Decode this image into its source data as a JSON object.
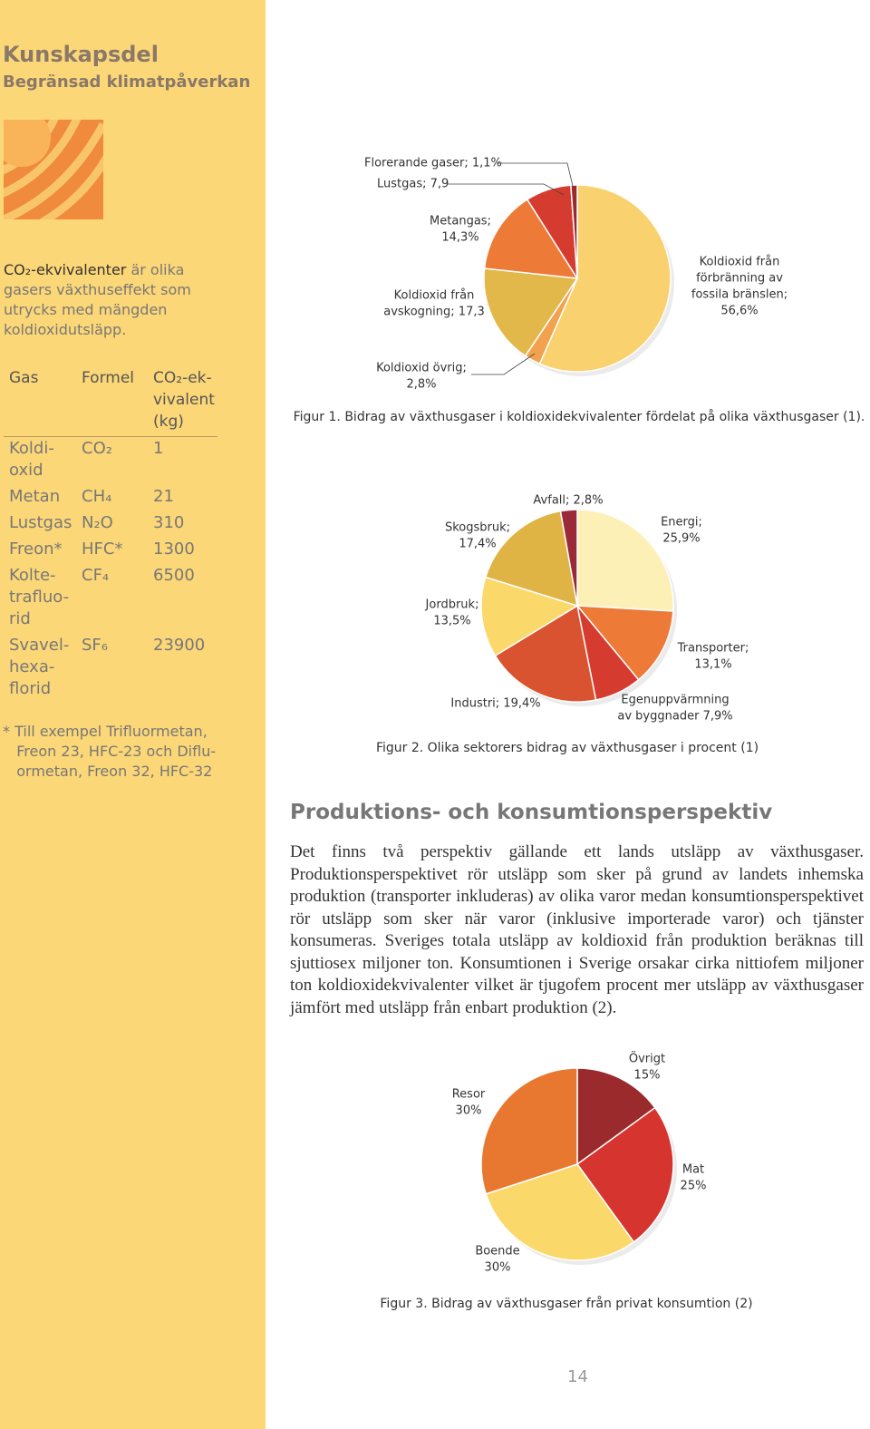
{
  "sidebar": {
    "title": "Kunskapsdel",
    "subtitle": "Begränsad klimatpåverkan",
    "definition": {
      "term": "CO₂-ekvivalenter",
      "text": " är olika gasers växthuseffekt som utrycks med mängden koldioxidutsläpp."
    },
    "table": {
      "header": [
        "Gas",
        "Formel",
        "CO₂-ek-\nvivalent\n(kg)"
      ],
      "rows": [
        [
          "Koldi-\noxid",
          "CO₂",
          "1"
        ],
        [
          "Metan",
          "CH₄",
          "21"
        ],
        [
          "Lustgas",
          "N₂O",
          "310"
        ],
        [
          "Freon*",
          "HFC*",
          "1300"
        ],
        [
          "Kolte-\ntrafluo-\nrid",
          "CF₄",
          "6500"
        ],
        [
          "Svavel-\nhexa-\nflorid",
          "SF₆",
          "23900"
        ]
      ]
    },
    "footnote": "* Till exempel Trifluormetan,\n   Freon 23, HFC-23 och Diflu-\n   ormetan, Freon 32, HFC-32"
  },
  "figures": [
    {
      "type": "pie",
      "caption": "Figur 1. Bidrag av växthusgaser i koldioxidekvivalenter fördelat på olika växthusgaser (1).",
      "slices": [
        {
          "label": [
            "Koldioxid från",
            "förbränning av",
            "fossila bränslen;",
            "56,6%"
          ],
          "value": 56.6,
          "color": "#f9d16f"
        },
        {
          "label": [
            "Koldioxid övrig;",
            "2,8%"
          ],
          "value": 2.8,
          "color": "#f2a24e"
        },
        {
          "label": [
            "Koldioxid från",
            "avskogning; 17,3"
          ],
          "value": 17.3,
          "color": "#e2b84a"
        },
        {
          "label": [
            "Metangas;",
            "14,3%"
          ],
          "value": 14.3,
          "color": "#ee7a38"
        },
        {
          "label": [
            "Lustgas; 7,9"
          ],
          "value": 7.9,
          "color": "#d63b30"
        },
        {
          "label": [
            "Florerande gaser; 1,1%"
          ],
          "value": 1.1,
          "color": "#9b2a2c"
        }
      ]
    },
    {
      "type": "pie",
      "caption": "Figur 2. Olika sektorers bidrag av växthusgaser i procent (1)",
      "slices": [
        {
          "label": [
            "Energi;",
            "25,9%"
          ],
          "value": 25.9,
          "color": "#fdf0b6"
        },
        {
          "label": [
            "Transporter;",
            "13,1%"
          ],
          "value": 13.1,
          "color": "#ee7a38"
        },
        {
          "label": [
            "Egenuppvärmning",
            "av byggnader 7,9%"
          ],
          "value": 7.9,
          "color": "#d63b30"
        },
        {
          "label": [
            "Industri; 19,4%"
          ],
          "value": 19.4,
          "color": "#d95330"
        },
        {
          "label": [
            "Jordbruk;",
            "13,5%"
          ],
          "value": 13.5,
          "color": "#fbd86a"
        },
        {
          "label": [
            "Skogsbruk;",
            "17,4%"
          ],
          "value": 17.4,
          "color": "#dfb445"
        },
        {
          "label": [
            "Avfall; 2,8%"
          ],
          "value": 2.8,
          "color": "#9b2a38"
        }
      ]
    },
    {
      "type": "pie",
      "caption": "Figur 3. Bidrag av växthusgaser från privat konsumtion (2)",
      "slices": [
        {
          "label": [
            "Övrigt",
            "15%"
          ],
          "value": 15,
          "color": "#9b2a2c"
        },
        {
          "label": [
            "Mat",
            "25%"
          ],
          "value": 25,
          "color": "#d6342f"
        },
        {
          "label": [
            "Boende",
            "30%"
          ],
          "value": 30,
          "color": "#fbd86a"
        },
        {
          "label": [
            "Resor",
            "30%"
          ],
          "value": 30,
          "color": "#e8782f"
        }
      ]
    }
  ],
  "article": {
    "heading": "Produktions- och konsumtionsperspektiv",
    "paragraph": "Det finns två perspektiv gällande ett lands utsläpp av växthusgaser. Produktionsperspektivet rör utsläpp som sker på grund av landets inhemska produktion (transporter inkluderas) av olika varor medan konsumtionsperspektivet rör utsläpp som sker när varor (inklusive importerade varor) och tjänster konsumeras. Sveriges totala utsläpp av koldioxid från produktion beräknas till sjuttiosex miljoner ton. Konsumtionen i Sverige orsakar cirka nittiofem miljoner ton koldioxidekvivalenter vilket är tjugofem procent mer utsläpp av växthusgaser jämfört med utsläpp från enbart produktion (2)."
  },
  "page_number": "14"
}
